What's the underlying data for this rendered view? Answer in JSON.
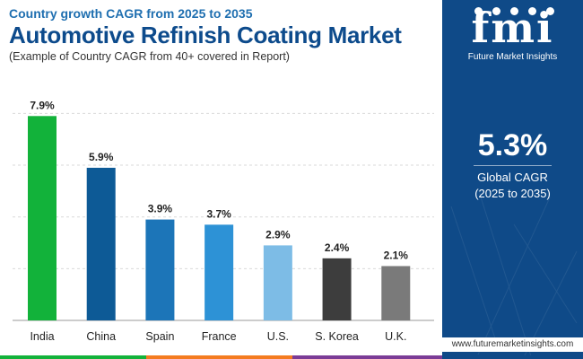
{
  "header": {
    "subtitle": "Country growth CAGR from 2025 to 2035",
    "title": "Automotive Refinish Coating Market",
    "note": "(Example of Country CAGR from 40+ covered in Report)"
  },
  "sidebar": {
    "logo_text": "fmi",
    "logo_subtitle": "Future Market Insights",
    "cagr_value": "5.3%",
    "cagr_label": "Global CAGR",
    "cagr_period": "(2025 to 2035)",
    "url": "www.futuremarketinsights.com",
    "background_color": "#0f4a88"
  },
  "chart_data": {
    "type": "bar",
    "title": "Automotive Refinish Coating Market",
    "categories": [
      "India",
      "China",
      "Spain",
      "France",
      "U.S.",
      "S. Korea",
      "U.K."
    ],
    "values": [
      7.9,
      5.9,
      3.9,
      3.7,
      2.9,
      2.4,
      2.1
    ],
    "value_labels": [
      "7.9%",
      "5.9%",
      "3.9%",
      "3.7%",
      "2.9%",
      "2.4%",
      "2.1%"
    ],
    "bar_colors": [
      "#12b23a",
      "#0d5a96",
      "#1c75b8",
      "#2d92d6",
      "#7dbce6",
      "#3d3d3d",
      "#7a7a7a"
    ],
    "ylim": [
      0,
      8.5
    ],
    "grid": true,
    "xlabel": "",
    "ylabel": ""
  },
  "bottom_bar_colors": [
    "#12b23a",
    "#f47b20",
    "#7b3c96",
    "#0f4a88"
  ]
}
